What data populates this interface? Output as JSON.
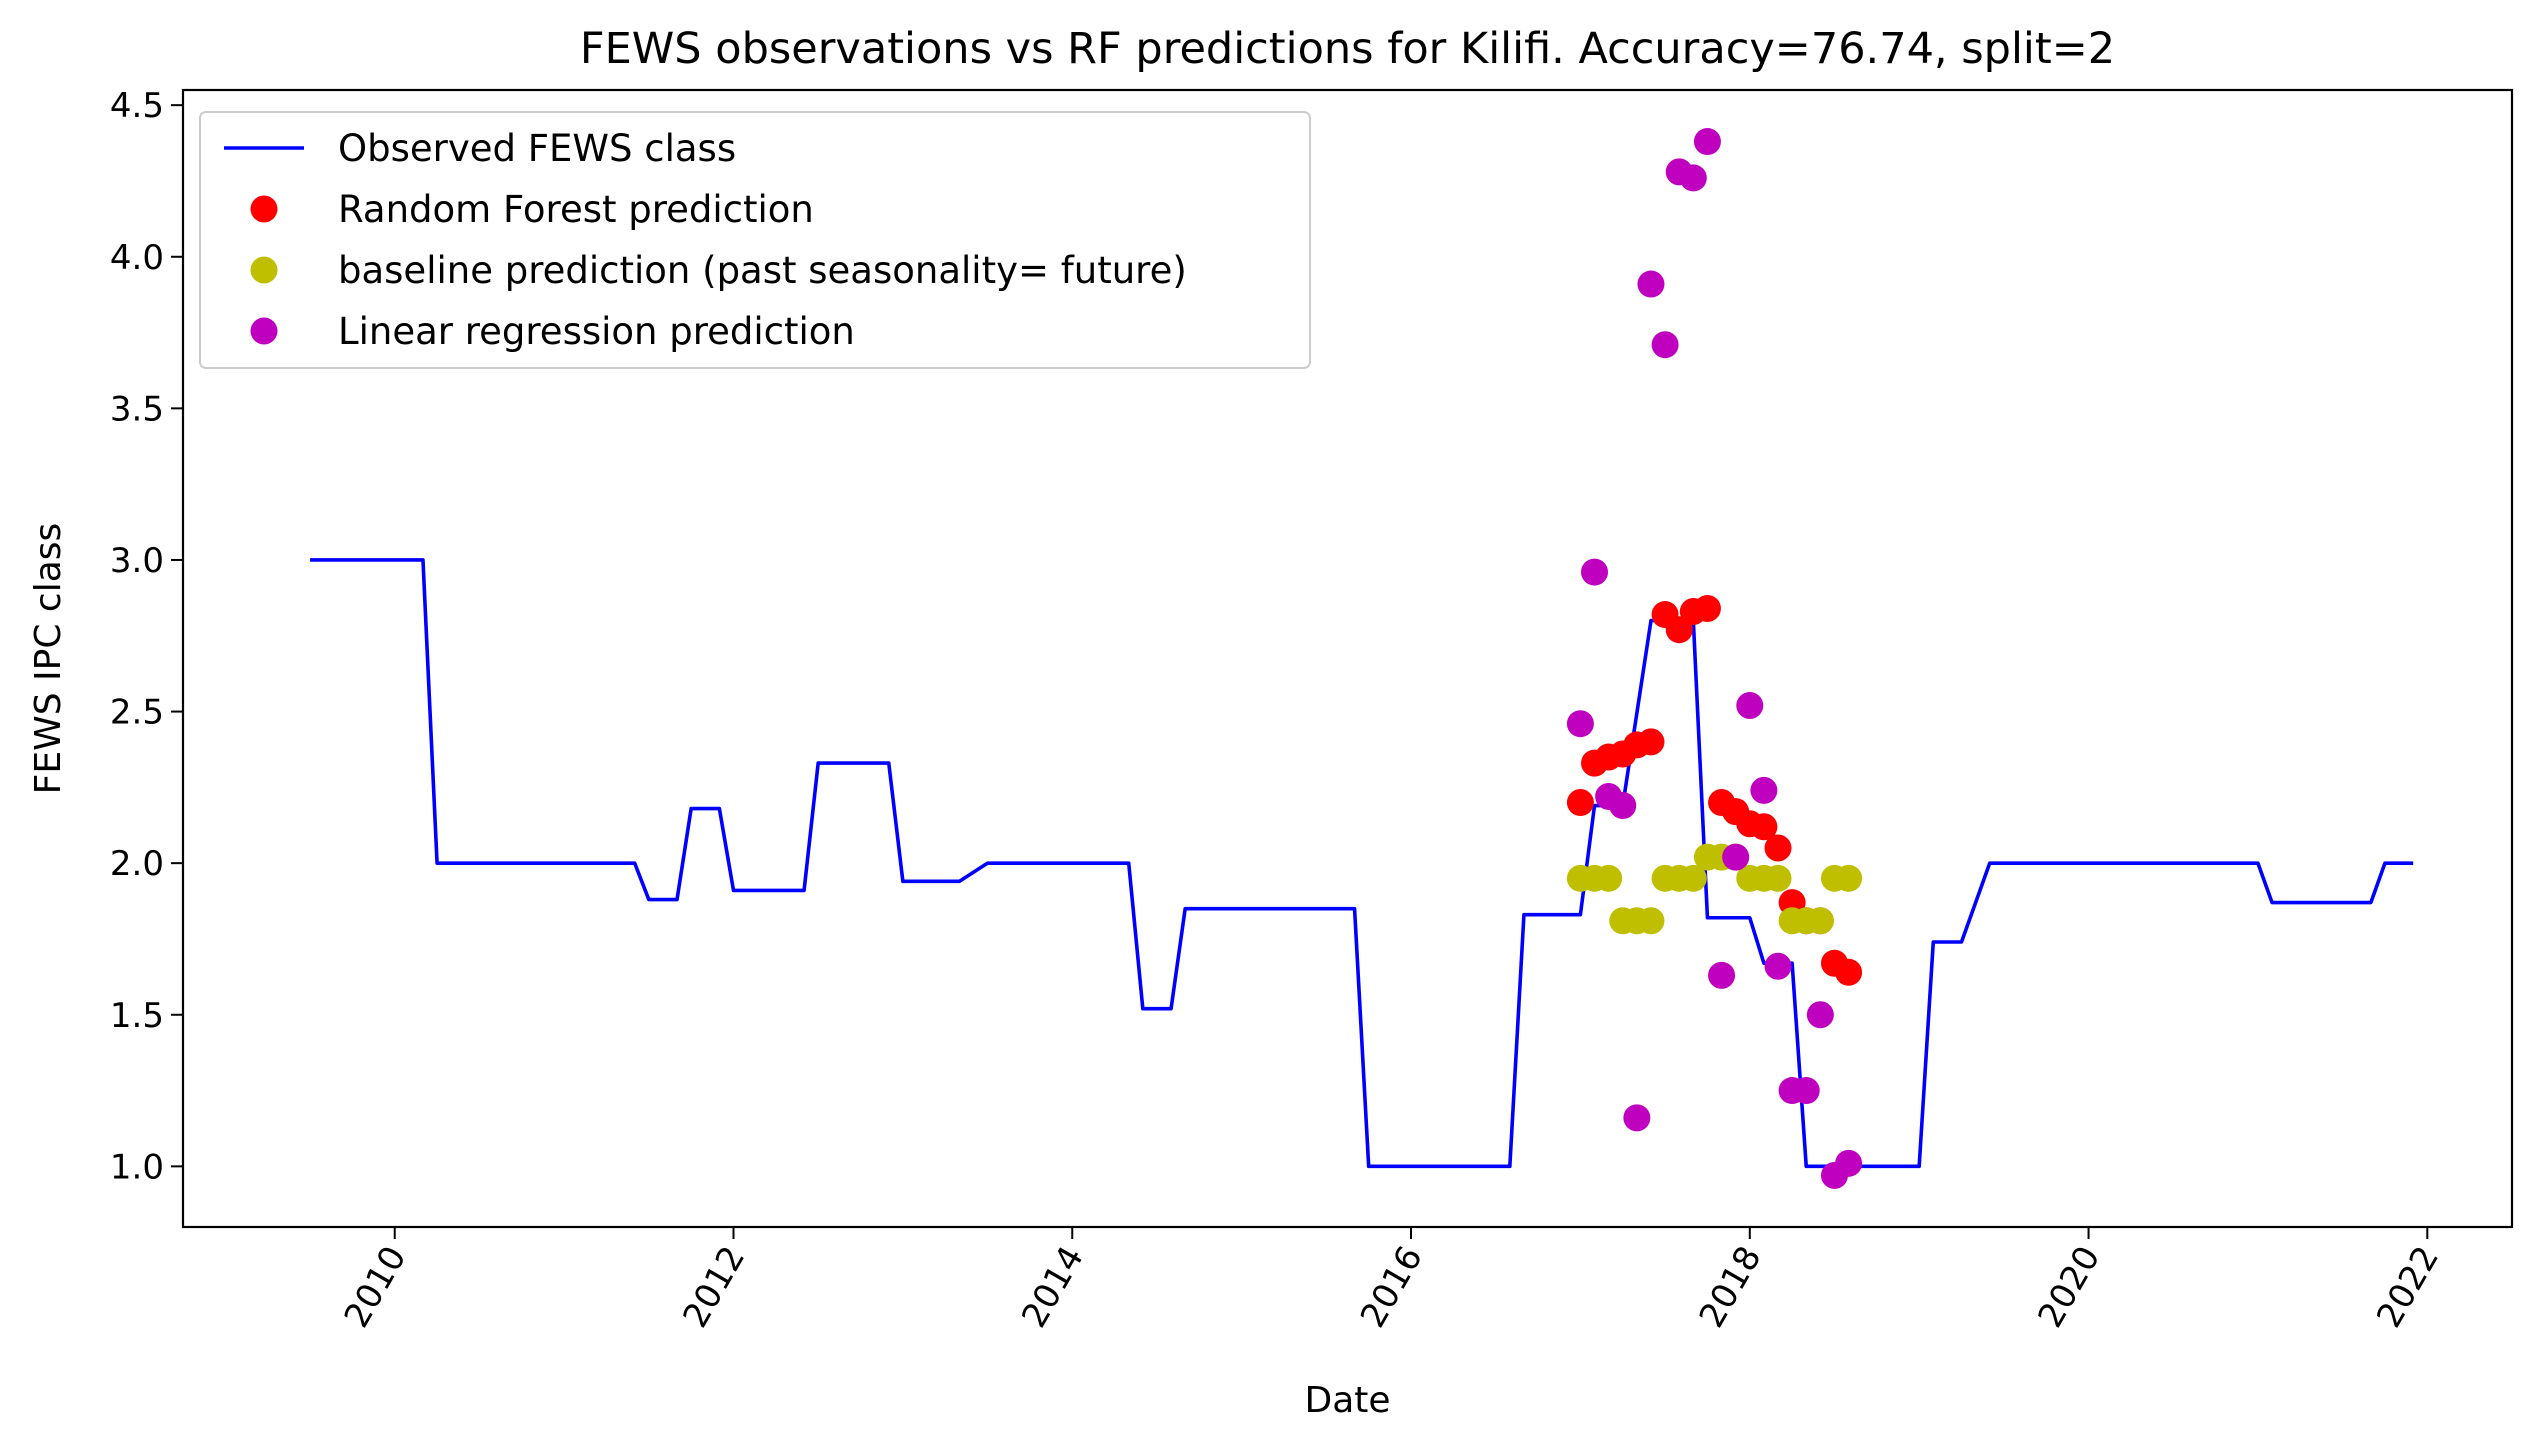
{
  "chart_data": {
    "type": "line",
    "title": "FEWS observations vs RF predictions for Kilifi. Accuracy=76.74, split=2",
    "xlabel": "Date",
    "ylabel": "FEWS IPC class",
    "xlim": [
      "2008-10-01",
      "2022-07-01"
    ],
    "ylim": [
      0.8,
      4.55
    ],
    "x_ticks": [
      "2010",
      "2012",
      "2014",
      "2016",
      "2018",
      "2020",
      "2022"
    ],
    "y_ticks": [
      "1.0",
      "1.5",
      "2.0",
      "2.5",
      "3.0",
      "3.5",
      "4.0",
      "4.5"
    ],
    "grid": false,
    "legend_position": "upper left",
    "series": [
      {
        "name": "Observed FEWS class",
        "style": "line",
        "color": "#0000ff",
        "points": [
          [
            "2009-07-01",
            3.0
          ],
          [
            "2010-03-01",
            3.0
          ],
          [
            "2010-04-01",
            2.0
          ],
          [
            "2011-06-01",
            2.0
          ],
          [
            "2011-07-01",
            1.88
          ],
          [
            "2011-09-01",
            1.88
          ],
          [
            "2011-10-01",
            2.18
          ],
          [
            "2011-12-01",
            2.18
          ],
          [
            "2012-01-01",
            1.91
          ],
          [
            "2012-06-01",
            1.91
          ],
          [
            "2012-07-01",
            2.33
          ],
          [
            "2012-12-01",
            2.33
          ],
          [
            "2013-01-01",
            1.94
          ],
          [
            "2013-05-01",
            1.94
          ],
          [
            "2013-07-01",
            2.0
          ],
          [
            "2014-05-01",
            2.0
          ],
          [
            "2014-06-01",
            1.52
          ],
          [
            "2014-08-01",
            1.52
          ],
          [
            "2014-09-01",
            1.85
          ],
          [
            "2015-09-01",
            1.85
          ],
          [
            "2015-10-01",
            1.0
          ],
          [
            "2016-08-01",
            1.0
          ],
          [
            "2016-09-01",
            1.83
          ],
          [
            "2017-01-01",
            1.83
          ],
          [
            "2017-02-01",
            2.19
          ],
          [
            "2017-04-01",
            2.19
          ],
          [
            "2017-06-01",
            2.8
          ],
          [
            "2017-09-01",
            2.8
          ],
          [
            "2017-10-01",
            1.82
          ],
          [
            "2018-01-01",
            1.82
          ],
          [
            "2018-02-01",
            1.67
          ],
          [
            "2018-04-01",
            1.67
          ],
          [
            "2018-05-01",
            1.0
          ],
          [
            "2019-01-01",
            1.0
          ],
          [
            "2019-02-01",
            1.74
          ],
          [
            "2019-04-01",
            1.74
          ],
          [
            "2019-06-01",
            2.0
          ],
          [
            "2021-01-01",
            2.0
          ],
          [
            "2021-02-01",
            1.87
          ],
          [
            "2021-09-01",
            1.87
          ],
          [
            "2021-10-01",
            2.0
          ],
          [
            "2021-12-01",
            2.0
          ]
        ]
      },
      {
        "name": "Random Forest prediction",
        "style": "marker",
        "color": "#ff0000",
        "points": [
          [
            "2017-01-01",
            2.2
          ],
          [
            "2017-02-01",
            2.33
          ],
          [
            "2017-03-01",
            2.35
          ],
          [
            "2017-04-01",
            2.36
          ],
          [
            "2017-05-01",
            2.39
          ],
          [
            "2017-06-01",
            2.4
          ],
          [
            "2017-07-01",
            2.82
          ],
          [
            "2017-08-01",
            2.77
          ],
          [
            "2017-09-01",
            2.83
          ],
          [
            "2017-10-01",
            2.84
          ],
          [
            "2017-11-01",
            2.2
          ],
          [
            "2017-12-01",
            2.17
          ],
          [
            "2018-01-01",
            2.13
          ],
          [
            "2018-02-01",
            2.12
          ],
          [
            "2018-03-01",
            2.05
          ],
          [
            "2018-04-01",
            1.87
          ],
          [
            "2018-05-01",
            1.81
          ],
          [
            "2018-06-01",
            1.81
          ],
          [
            "2018-07-01",
            1.67
          ],
          [
            "2018-08-01",
            1.64
          ]
        ]
      },
      {
        "name": "baseline prediction (past seasonality= future)",
        "style": "marker",
        "color": "#bfbf00",
        "points": [
          [
            "2017-01-01",
            1.95
          ],
          [
            "2017-02-01",
            1.95
          ],
          [
            "2017-03-01",
            1.95
          ],
          [
            "2017-04-01",
            1.81
          ],
          [
            "2017-05-01",
            1.81
          ],
          [
            "2017-06-01",
            1.81
          ],
          [
            "2017-07-01",
            1.95
          ],
          [
            "2017-08-01",
            1.95
          ],
          [
            "2017-09-01",
            1.95
          ],
          [
            "2017-10-01",
            2.02
          ],
          [
            "2017-11-01",
            2.02
          ],
          [
            "2017-12-01",
            2.02
          ],
          [
            "2018-01-01",
            1.95
          ],
          [
            "2018-02-01",
            1.95
          ],
          [
            "2018-03-01",
            1.95
          ],
          [
            "2018-04-01",
            1.81
          ],
          [
            "2018-05-01",
            1.81
          ],
          [
            "2018-06-01",
            1.81
          ],
          [
            "2018-07-01",
            1.95
          ],
          [
            "2018-08-01",
            1.95
          ]
        ]
      },
      {
        "name": "Linear regression prediction",
        "style": "marker",
        "color": "#bf00bf",
        "points": [
          [
            "2017-01-01",
            2.46
          ],
          [
            "2017-02-01",
            2.96
          ],
          [
            "2017-03-01",
            2.22
          ],
          [
            "2017-04-01",
            2.19
          ],
          [
            "2017-05-01",
            1.16
          ],
          [
            "2017-06-01",
            3.91
          ],
          [
            "2017-07-01",
            3.71
          ],
          [
            "2017-08-01",
            4.28
          ],
          [
            "2017-09-01",
            4.26
          ],
          [
            "2017-10-01",
            4.38
          ],
          [
            "2017-11-01",
            1.63
          ],
          [
            "2017-12-01",
            2.02
          ],
          [
            "2018-01-01",
            2.52
          ],
          [
            "2018-02-01",
            2.24
          ],
          [
            "2018-03-01",
            1.66
          ],
          [
            "2018-04-01",
            1.25
          ],
          [
            "2018-05-01",
            1.25
          ],
          [
            "2018-06-01",
            1.5
          ],
          [
            "2018-07-01",
            0.97
          ],
          [
            "2018-08-01",
            1.01
          ]
        ]
      }
    ]
  }
}
